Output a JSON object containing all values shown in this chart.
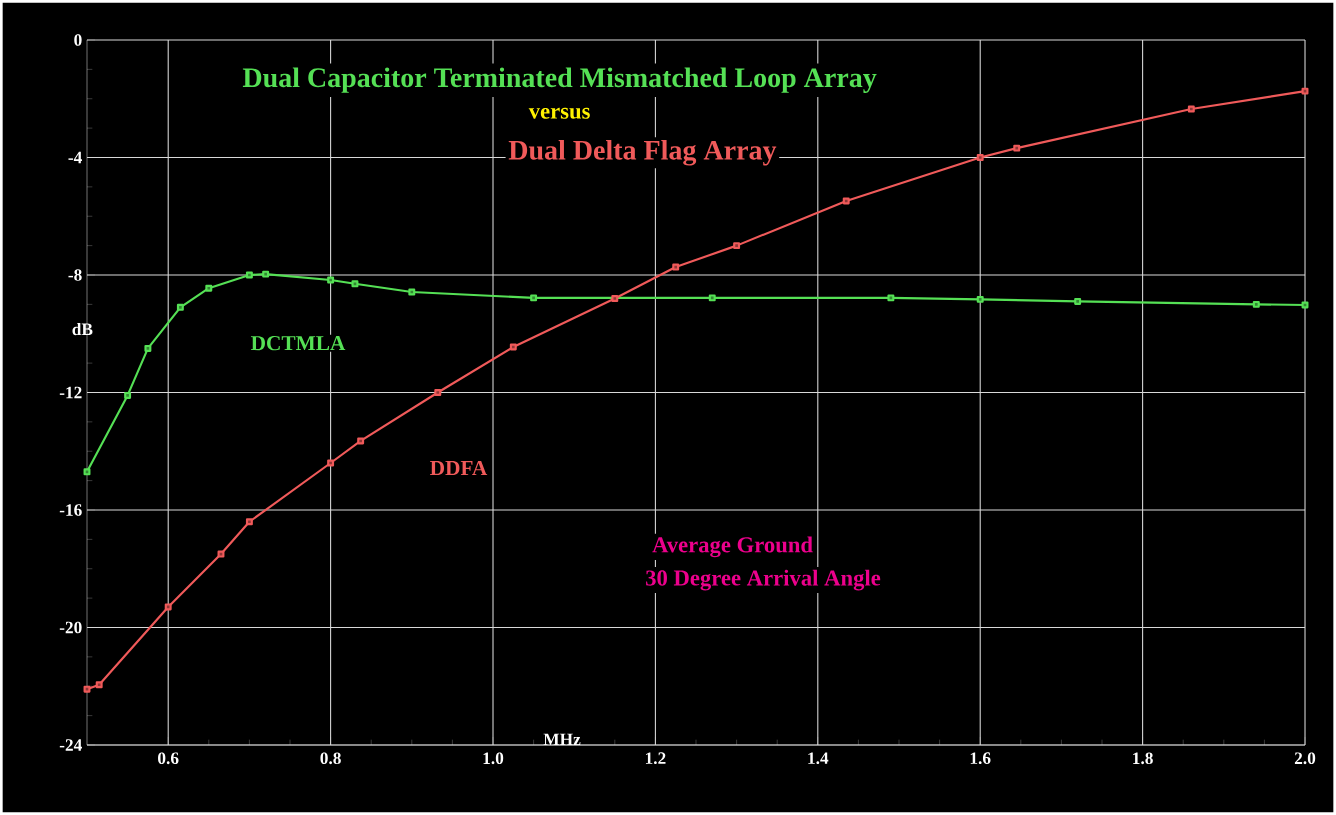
{
  "chart_data": {
    "type": "line",
    "title": "Dual Capacitor Terminated Mismatched Loop Array",
    "subtitle": "versus",
    "xlabel": "MHz",
    "ylabel": "dB",
    "annotations": [
      "Dual Delta Flag Array",
      "Average Ground",
      "30 Degree Arrival Angle"
    ],
    "series": [
      {
        "name": "DCTMLA",
        "color": "#55e055",
        "x": [
          0.5,
          0.55,
          0.575,
          0.615,
          0.65,
          0.7,
          0.72,
          0.8,
          0.83,
          0.9,
          1.05,
          1.27,
          1.49,
          1.6,
          1.72,
          1.94,
          2.0
        ],
        "values": [
          -14.7,
          -12.1,
          -10.5,
          -9.1,
          -8.45,
          -8.0,
          -7.97,
          -8.17,
          -8.3,
          -8.58,
          -8.78,
          -8.78,
          -8.78,
          -8.83,
          -8.9,
          -9.0,
          -9.02
        ]
      },
      {
        "name": "DDFA",
        "color": "#f05a5a",
        "x": [
          0.5,
          0.515,
          0.6,
          0.665,
          0.7,
          0.8,
          0.837,
          0.932,
          1.025,
          1.15,
          1.225,
          1.3,
          1.435,
          1.6,
          1.645,
          1.86,
          2.0
        ],
        "values": [
          -22.1,
          -21.95,
          -19.3,
          -17.5,
          -16.4,
          -14.4,
          -13.65,
          -12.0,
          -10.45,
          -8.8,
          -7.73,
          -7.0,
          -5.48,
          -4.0,
          -3.68,
          -2.35,
          -1.74
        ]
      }
    ],
    "xlim": [
      0.5,
      2.0
    ],
    "ylim": [
      -24,
      0
    ],
    "xticks": [
      0.6,
      0.8,
      {
        "value": 1.0,
        "label": "1.0"
      },
      1.2,
      1.4,
      1.6,
      1.8,
      {
        "value": 2.0,
        "label": "2.0"
      }
    ],
    "yticks": [
      -24,
      -20,
      -16,
      -12,
      -8,
      -4,
      0
    ],
    "grid": true,
    "marker": "square",
    "line_style": "solid"
  }
}
